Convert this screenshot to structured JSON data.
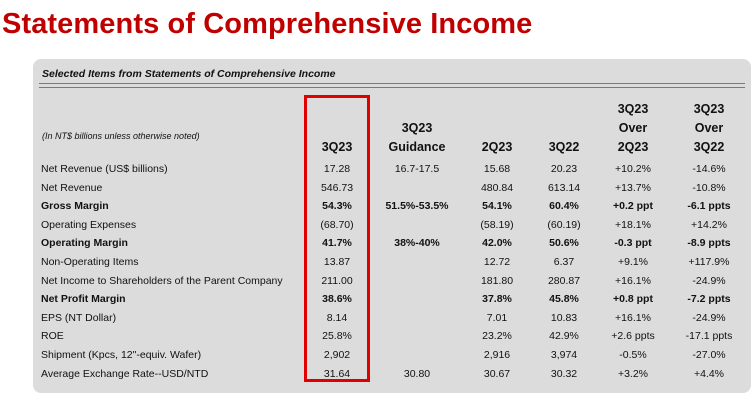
{
  "title": "Statements of Comprehensive Income",
  "panel_heading": "Selected Items from Statements of Comprehensive Income",
  "units_note": "(In NT$ billions unless otherwise noted)",
  "columns": [
    {
      "line1": "",
      "line2": "",
      "line3": "3Q23"
    },
    {
      "line1": "",
      "line2": "3Q23",
      "line3": "Guidance"
    },
    {
      "line1": "",
      "line2": "",
      "line3": "2Q23"
    },
    {
      "line1": "",
      "line2": "",
      "line3": "3Q22"
    },
    {
      "line1": "3Q23",
      "line2": "Over",
      "line3": "2Q23"
    },
    {
      "line1": "3Q23",
      "line2": "Over",
      "line3": "3Q22"
    }
  ],
  "rows": [
    {
      "label": "Net Revenue (US$ billions)",
      "values": [
        "17.28",
        "16.7-17.5",
        "15.68",
        "20.23",
        "+10.2%",
        "-14.6%"
      ]
    },
    {
      "label": "Net Revenue",
      "values": [
        "546.73",
        "",
        "480.84",
        "613.14",
        "+13.7%",
        "-10.8%"
      ]
    },
    {
      "label": "Gross Margin",
      "values": [
        "54.3%",
        "51.5%-53.5%",
        "54.1%",
        "60.4%",
        "+0.2 ppt",
        "-6.1 ppts"
      ]
    },
    {
      "label": "Operating Expenses",
      "values": [
        "(68.70)",
        "",
        "(58.19)",
        "(60.19)",
        "+18.1%",
        "+14.2%"
      ]
    },
    {
      "label": "Operating Margin",
      "values": [
        "41.7%",
        "38%-40%",
        "42.0%",
        "50.6%",
        "-0.3 ppt",
        "-8.9 ppts"
      ]
    },
    {
      "label": "Non-Operating Items",
      "values": [
        "13.87",
        "",
        "12.72",
        "6.37",
        "+9.1%",
        "+117.9%"
      ]
    },
    {
      "label": "Net Income to Shareholders of the Parent Company",
      "values": [
        "211.00",
        "",
        "181.80",
        "280.87",
        "+16.1%",
        "-24.9%"
      ]
    },
    {
      "label": "Net Profit Margin",
      "values": [
        "38.6%",
        "",
        "37.8%",
        "45.8%",
        "+0.8 ppt",
        "-7.2 ppts"
      ]
    },
    {
      "label": "EPS (NT Dollar)",
      "values": [
        "8.14",
        "",
        "7.01",
        "10.83",
        "+16.1%",
        "-24.9%"
      ]
    },
    {
      "label": "ROE",
      "values": [
        "25.8%",
        "",
        "23.2%",
        "42.9%",
        "+2.6 ppts",
        "-17.1 ppts"
      ]
    },
    {
      "label": "Shipment (Kpcs, 12\"-equiv. Wafer)",
      "values": [
        "2,902",
        "",
        "2,916",
        "3,974",
        "-0.5%",
        "-27.0%"
      ]
    },
    {
      "label": "Average Exchange Rate--USD/NTD",
      "values": [
        "31.64",
        "30.80",
        "30.67",
        "30.32",
        "+3.2%",
        "+4.4%"
      ]
    }
  ],
  "bold_rows": [
    2,
    4,
    7
  ],
  "highlight_color": "#e00000"
}
